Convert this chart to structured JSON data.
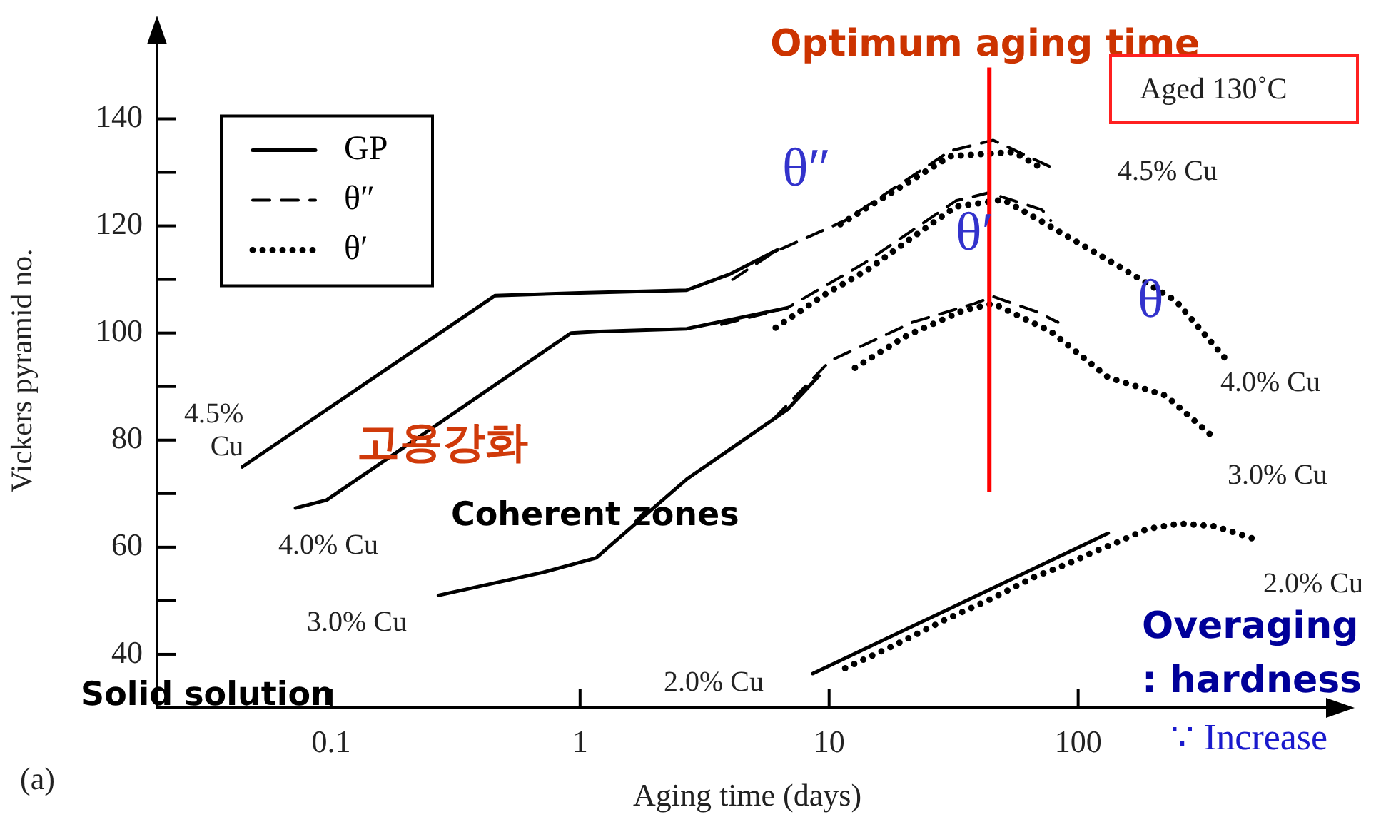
{
  "chart_data": {
    "type": "line",
    "xlabel": "Aging time (days)",
    "ylabel": "Vickers pyramid no.",
    "log": "x",
    "grid": false,
    "legend": "top left",
    "marker": "none",
    "xlim": [
      0.02,
      1100
    ],
    "xticks": [
      0.1,
      1,
      10,
      100
    ],
    "ylim": [
      30,
      156
    ],
    "yticks": [
      {
        "value": 40,
        "label": "40"
      },
      {
        "value": 50,
        "label": null
      },
      {
        "value": 60,
        "label": "60"
      },
      {
        "value": 70,
        "label": null
      },
      {
        "value": 80,
        "label": "80"
      },
      {
        "value": 90,
        "label": null
      },
      {
        "value": 100,
        "label": "100"
      },
      {
        "value": 110,
        "label": null
      },
      {
        "value": 120,
        "label": "120"
      },
      {
        "value": 130,
        "label": null
      },
      {
        "value": 140,
        "label": "140"
      }
    ],
    "series": [
      {
        "name": "GP",
        "color": "#000000",
        "line_style": "solid",
        "x": [
          0.044,
          0.456,
          1,
          2.68,
          4,
          6.2
        ],
        "values": [
          75,
          107,
          107.5,
          108,
          111,
          115.5
        ]
      },
      {
        "name": "θ″",
        "color": "#000000",
        "line_style": "dashed",
        "x": [
          4.1,
          5.96,
          11.6,
          30.6,
          45.6,
          77.6
        ],
        "values": [
          110,
          115,
          121,
          134,
          136,
          131
        ]
      },
      {
        "name": "θ′",
        "color": "#000000",
        "line_style": "dotted",
        "x": [
          11.1,
          30.6,
          55,
          72.6
        ],
        "values": [
          120.3,
          133,
          133.8,
          130.6
        ]
      },
      {
        "color": "#000000",
        "line_style": "solid",
        "x": [
          0.072,
          0.096,
          0.92,
          1.2,
          2.68,
          6.8
        ],
        "values": [
          67.3,
          68.8,
          100,
          100.3,
          100.8,
          104.7
        ]
      },
      {
        "color": "#000000",
        "line_style": "dashed",
        "x": [
          3.7,
          6.8,
          13.8,
          32.3,
          43.9,
          71.6,
          77.6
        ],
        "values": [
          101.6,
          104.7,
          113,
          124.7,
          126.2,
          123,
          121
        ]
      },
      {
        "color": "#000000",
        "line_style": "dotted",
        "x": [
          6.1,
          9.7,
          14.5,
          20.5,
          32.3,
          50,
          74.6,
          145,
          247,
          394
        ],
        "values": [
          101,
          107.3,
          112,
          117.1,
          123.6,
          124.9,
          120.3,
          112.5,
          106,
          95
        ]
      },
      {
        "color": "#000000",
        "line_style": "solid",
        "x": [
          0.27,
          0.71,
          1.16,
          2.68,
          6.8,
          9.1
        ],
        "values": [
          51,
          55.3,
          58,
          72.7,
          85.7,
          92
        ]
      },
      {
        "color": "#000000",
        "line_style": "dashed",
        "x": [
          6,
          10.1,
          21.6,
          38.4,
          45.6,
          67.9,
          83
        ],
        "values": [
          84,
          94.8,
          102,
          105.5,
          106.8,
          104,
          102
        ]
      },
      {
        "color": "#000000",
        "line_style": "dotted",
        "x": [
          12.7,
          20.5,
          34.5,
          45.6,
          77.6,
          132,
          225,
          354
        ],
        "values": [
          93.5,
          99.5,
          104.2,
          105.5,
          100.3,
          91.7,
          88.3,
          80.3
        ]
      },
      {
        "color": "#000000",
        "line_style": "solid",
        "x": [
          8.6,
          132
        ],
        "values": [
          36.4,
          62.6
        ]
      },
      {
        "color": "#000000",
        "line_style": "dotted",
        "x": [
          11.6,
          18.5,
          29.4,
          45,
          67.1,
          91,
          114,
          145,
          189,
          257,
          354,
          528
        ],
        "values": [
          37.4,
          41.8,
          46.5,
          50.4,
          54.5,
          56.9,
          59,
          61,
          63.4,
          64.4,
          63.9,
          61.3
        ]
      }
    ],
    "ref_lines": [
      {
        "axis": "x",
        "value": 44,
        "label": "Optimum aging time",
        "color": "#ff0000"
      }
    ],
    "annotations": [
      "4.5%\nCu",
      "4.0% Cu",
      "3.0% Cu",
      "2.0% Cu",
      "4.5% Cu",
      "4.0% Cu",
      "3.0% Cu",
      "2.0% Cu",
      "θ″",
      "θ′",
      "θ",
      "고용강화",
      "Coherent zones",
      "Solid solution",
      "Overaging",
      ": hardness",
      "∵ Increase",
      "Aged 130˚C",
      "(a)"
    ]
  }
}
